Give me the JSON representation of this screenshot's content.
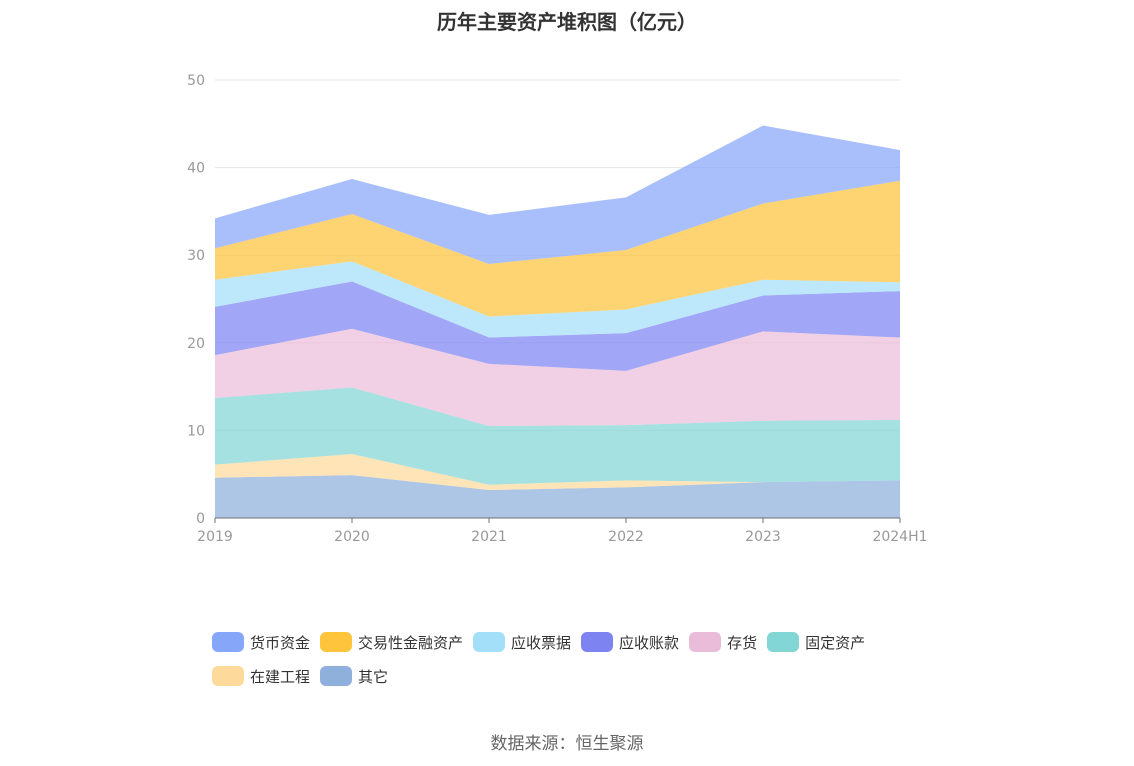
{
  "title": "历年主要资产堆积图（亿元）",
  "source": "数据来源：恒生聚源",
  "chart_data": {
    "type": "area",
    "stacked": true,
    "title": "历年主要资产堆积图（亿元）",
    "categories": [
      "2019",
      "2020",
      "2021",
      "2022",
      "2023",
      "2024H1"
    ],
    "ylim": [
      0,
      50
    ],
    "yticks": [
      0,
      10,
      20,
      30,
      40,
      50
    ],
    "grid": true,
    "legend_position": "bottom",
    "series": [
      {
        "name": "其它",
        "color": "#8fb0db",
        "values": [
          4.6,
          4.9,
          3.2,
          3.5,
          4.1,
          4.3
        ]
      },
      {
        "name": "在建工程",
        "color": "#fdd99b",
        "values": [
          1.5,
          2.4,
          0.6,
          0.8,
          0.0,
          0.0
        ]
      },
      {
        "name": "固定资产",
        "color": "#82d6d6",
        "values": [
          7.6,
          7.6,
          6.7,
          6.3,
          7.0,
          6.9
        ]
      },
      {
        "name": "存货",
        "color": "#ebbcd9",
        "values": [
          4.9,
          6.7,
          7.1,
          6.2,
          10.2,
          9.4
        ]
      },
      {
        "name": "应收账款",
        "color": "#7d84f2",
        "values": [
          5.5,
          5.4,
          3.0,
          4.3,
          4.1,
          5.3
        ]
      },
      {
        "name": "应收票据",
        "color": "#a4dffa",
        "values": [
          3.1,
          2.3,
          2.4,
          2.7,
          1.8,
          1.0
        ]
      },
      {
        "name": "交易性金融资产",
        "color": "#fdc43c",
        "values": [
          3.6,
          5.4,
          6.0,
          6.8,
          8.7,
          11.6
        ]
      },
      {
        "name": "货币资金",
        "color": "#86a6f9",
        "values": [
          3.4,
          4.0,
          5.6,
          6.0,
          8.9,
          3.5
        ]
      }
    ]
  },
  "legend_order": [
    "货币资金",
    "交易性金融资产",
    "应收票据",
    "应收账款",
    "存货",
    "固定资产",
    "在建工程",
    "其它"
  ]
}
